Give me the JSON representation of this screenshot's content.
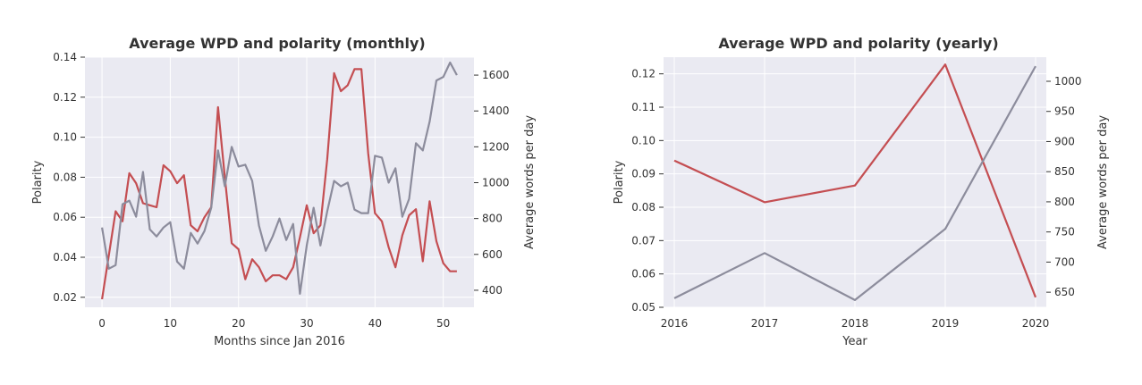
{
  "colors": {
    "polarity": "#c44e52",
    "wpd": "#8c8c9c"
  },
  "chart_data": [
    {
      "type": "line",
      "title": "Average WPD and polarity (monthly)",
      "xlabel": "Months since Jan 2016",
      "ylabel": "Polarity",
      "ylabel_right": "Average words per day",
      "xlim": [
        -2.5,
        54.5
      ],
      "ylim": [
        0.015,
        0.14
      ],
      "ylim_right": [
        305,
        1700
      ],
      "xticks": [
        0,
        10,
        20,
        30,
        40,
        50
      ],
      "xtick_labels": [
        "0",
        "10",
        "20",
        "30",
        "40",
        "50"
      ],
      "yticks": [
        0.02,
        0.04,
        0.06,
        0.08,
        0.1,
        0.12,
        0.14
      ],
      "ytick_labels": [
        "0.02",
        "0.04",
        "0.06",
        "0.08",
        "0.10",
        "0.12",
        "0.14"
      ],
      "yticks_right": [
        400,
        600,
        800,
        1000,
        1200,
        1400,
        1600
      ],
      "ytick_labels_right": [
        "400",
        "600",
        "800",
        "1000",
        "1200",
        "1400",
        "1600"
      ],
      "x": [
        0,
        1,
        2,
        3,
        4,
        5,
        6,
        7,
        8,
        9,
        10,
        11,
        12,
        13,
        14,
        15,
        16,
        17,
        18,
        19,
        20,
        21,
        22,
        23,
        24,
        25,
        26,
        27,
        28,
        29,
        30,
        31,
        32,
        33,
        34,
        35,
        36,
        37,
        38,
        39,
        40,
        41,
        42,
        43,
        44,
        45,
        46,
        47,
        48,
        49,
        50,
        51,
        52
      ],
      "series": [
        {
          "axis": "left",
          "color_key": "polarity",
          "values": [
            0.019,
            0.041,
            0.063,
            0.058,
            0.082,
            0.077,
            0.067,
            0.066,
            0.065,
            0.086,
            0.083,
            0.077,
            0.081,
            0.056,
            0.053,
            0.06,
            0.065,
            0.115,
            0.08,
            0.047,
            0.044,
            0.029,
            0.039,
            0.035,
            0.028,
            0.031,
            0.031,
            0.029,
            0.035,
            0.05,
            0.066,
            0.052,
            0.056,
            0.089,
            0.132,
            0.123,
            0.126,
            0.134,
            0.134,
            0.092,
            0.062,
            0.058,
            0.045,
            0.035,
            0.051,
            0.061,
            0.064,
            0.038,
            0.068,
            0.048,
            0.037,
            0.033,
            0.033
          ]
        },
        {
          "axis": "right",
          "color_key": "wpd",
          "values": [
            750,
            520,
            540,
            880,
            900,
            810,
            1060,
            740,
            700,
            750,
            780,
            560,
            520,
            720,
            660,
            730,
            860,
            1180,
            980,
            1200,
            1090,
            1100,
            1010,
            760,
            620,
            700,
            800,
            680,
            770,
            380,
            650,
            860,
            650,
            840,
            1010,
            980,
            1000,
            850,
            830,
            830,
            1150,
            1140,
            1000,
            1080,
            810,
            910,
            1220,
            1180,
            1340,
            1570,
            1590,
            1670,
            1600
          ]
        }
      ]
    },
    {
      "type": "line",
      "title": "Average WPD and polarity (yearly)",
      "xlabel": "Year",
      "ylabel": "Polarity",
      "ylabel_right": "Average words per day",
      "categories": [
        "2016",
        "2017",
        "2018",
        "2019",
        "2020"
      ],
      "ylim": [
        0.05,
        0.125
      ],
      "ylim_right": [
        625,
        1040
      ],
      "yticks": [
        0.05,
        0.06,
        0.07,
        0.08,
        0.09,
        0.1,
        0.11,
        0.12
      ],
      "ytick_labels": [
        "0.05",
        "0.06",
        "0.07",
        "0.08",
        "0.09",
        "0.10",
        "0.11",
        "0.12"
      ],
      "yticks_right": [
        650,
        700,
        750,
        800,
        850,
        900,
        950,
        1000
      ],
      "ytick_labels_right": [
        "650",
        "700",
        "750",
        "800",
        "850",
        "900",
        "950",
        "1000"
      ],
      "series": [
        {
          "axis": "left",
          "color_key": "polarity",
          "values": [
            0.094,
            0.0815,
            0.0865,
            0.1228,
            0.053
          ]
        },
        {
          "axis": "right",
          "color_key": "wpd",
          "values": [
            640,
            715,
            637,
            755,
            1025
          ]
        }
      ]
    }
  ]
}
